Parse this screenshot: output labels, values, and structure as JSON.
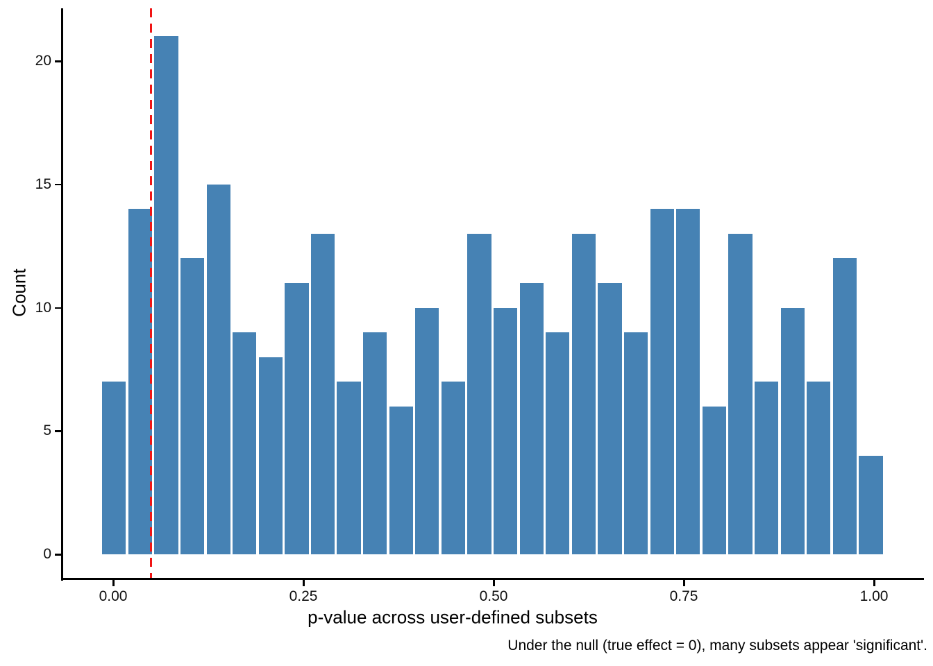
{
  "chart_data": {
    "type": "bar",
    "subtype": "histogram",
    "title": "",
    "xlabel": "p-value across user-defined subsets",
    "ylabel": "Count",
    "caption": "Under the null (true effect = 0), many subsets appear 'significant'.",
    "bins": {
      "start": -0.016,
      "width": 0.0343
    },
    "counts": [
      7,
      14,
      21,
      12,
      15,
      9,
      8,
      11,
      13,
      7,
      9,
      6,
      10,
      7,
      13,
      10,
      11,
      9,
      13,
      11,
      9,
      14,
      14,
      6,
      13,
      7,
      10,
      7,
      12,
      4
    ],
    "x_ticks": [
      {
        "value": 0.0,
        "label": "0.00"
      },
      {
        "value": 0.25,
        "label": "0.25"
      },
      {
        "value": 0.5,
        "label": "0.50"
      },
      {
        "value": 0.75,
        "label": "0.75"
      },
      {
        "value": 1.0,
        "label": "1.00"
      }
    ],
    "y_ticks": [
      {
        "value": 0,
        "label": "0"
      },
      {
        "value": 5,
        "label": "5"
      },
      {
        "value": 10,
        "label": "10"
      },
      {
        "value": 15,
        "label": "15"
      },
      {
        "value": 20,
        "label": "20"
      }
    ],
    "xlim": [
      -0.068,
      1.065
    ],
    "ylim": [
      -1,
      22.1
    ],
    "grid": false,
    "legend": "none",
    "vline": {
      "x": 0.05,
      "style": "dashed",
      "color": "#F01414"
    },
    "colors": {
      "bar_fill": "#4682B4",
      "bar_gap": "#FFFFFF",
      "axis": "#000000",
      "text": "#111111"
    }
  }
}
